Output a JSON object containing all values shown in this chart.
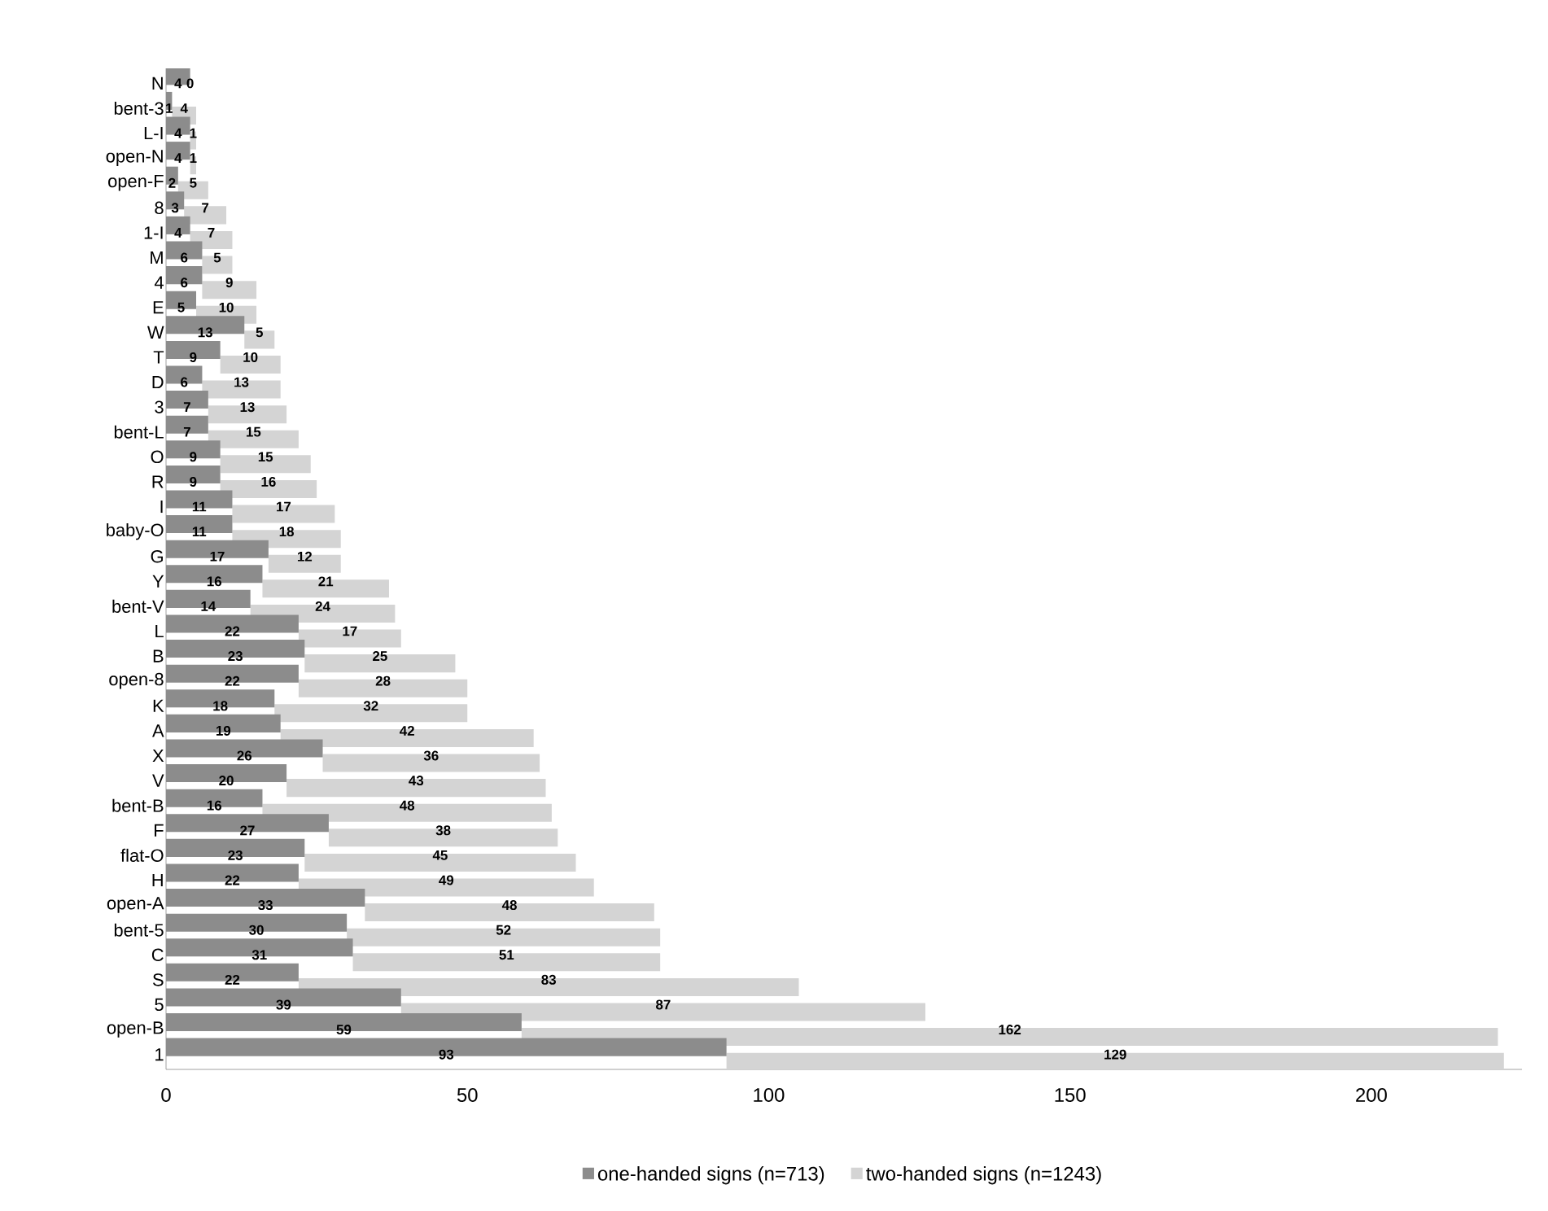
{
  "chart_data": {
    "type": "bar",
    "orientation": "horizontal",
    "stacked": true,
    "data_labels": true,
    "legend": "bottom",
    "grid": false,
    "categories": [
      "N",
      "bent-3",
      "L-I",
      "open-N",
      "open-F",
      "8",
      "1-I",
      "M",
      "4",
      "E",
      "W",
      "T",
      "D",
      "3",
      "bent-L",
      "O",
      "R",
      "I",
      "baby-O",
      "G",
      "Y",
      "bent-V",
      "L",
      "B",
      "open-8",
      "K",
      "A",
      "X",
      "V",
      "bent-B",
      "F",
      "flat-O",
      "H",
      "open-A",
      "bent-5",
      "C",
      "S",
      "5",
      "open-B",
      "1"
    ],
    "series": [
      {
        "name": "one-handed signs (n=713)",
        "color": "#8c8c8c",
        "values": [
          4,
          1,
          4,
          4,
          2,
          3,
          4,
          6,
          6,
          5,
          13,
          9,
          6,
          7,
          7,
          9,
          9,
          11,
          11,
          17,
          16,
          14,
          22,
          23,
          22,
          18,
          19,
          26,
          20,
          16,
          27,
          23,
          22,
          33,
          30,
          31,
          22,
          39,
          59,
          93
        ]
      },
      {
        "name": "two-handed signs (n=1243)",
        "color": "#d4d4d4",
        "values": [
          0,
          4,
          1,
          1,
          5,
          7,
          7,
          5,
          9,
          10,
          5,
          10,
          13,
          13,
          15,
          15,
          16,
          17,
          18,
          12,
          21,
          24,
          17,
          25,
          28,
          32,
          42,
          36,
          43,
          48,
          38,
          45,
          49,
          48,
          52,
          51,
          83,
          87,
          162,
          129
        ]
      }
    ],
    "xlim": [
      0,
      225
    ],
    "xticks": [
      0,
      50,
      100,
      150,
      200
    ]
  }
}
